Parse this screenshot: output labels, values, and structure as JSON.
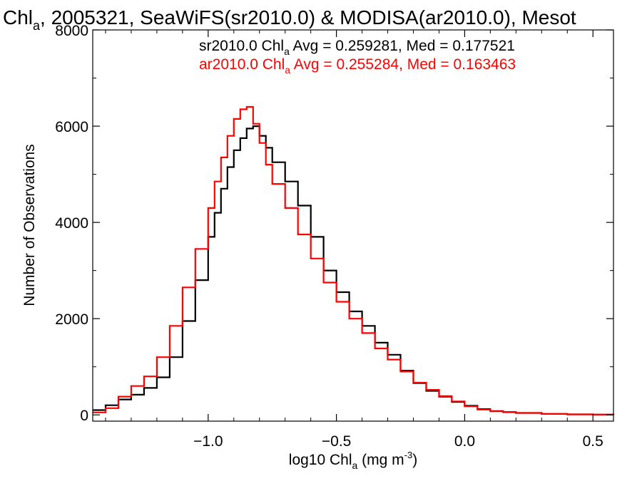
{
  "chart_data": {
    "type": "line",
    "title": {
      "main": "Chl",
      "sub": "a",
      "rest": ", 2005321, SeaWiFS(sr2010.0) & MODISA(ar2010.0), Mesot"
    },
    "xlabel": {
      "main": "log10 Chl",
      "sub": "a",
      "rest": " (mg m",
      "sup": "-3",
      "close": ")"
    },
    "ylabel": "Number of Observations",
    "xlim": [
      -1.45,
      0.58
    ],
    "ylim": [
      -130,
      8000
    ],
    "xticks": [
      -1.0,
      -0.5,
      0.0,
      0.5
    ],
    "xtick_labels": [
      "−1.0",
      "−0.5",
      "0.0",
      "0.5"
    ],
    "yticks": [
      0,
      2000,
      4000,
      6000,
      8000
    ],
    "ytick_labels": [
      "0",
      "2000",
      "4000",
      "6000",
      "8000"
    ],
    "grid": false,
    "legend_placement": "top-right",
    "series": [
      {
        "name": "sr2010.0",
        "color": "#000000",
        "legend": {
          "pre": "sr2010.0 Chl",
          "sub": "a",
          "post": " Avg = 0.259281, Med = 0.177521"
        },
        "x": [
          -1.45,
          -1.4,
          -1.35,
          -1.3,
          -1.25,
          -1.2,
          -1.15,
          -1.1,
          -1.05,
          -1.0,
          -0.975,
          -0.95,
          -0.925,
          -0.9,
          -0.875,
          -0.85,
          -0.825,
          -0.8,
          -0.775,
          -0.75,
          -0.7,
          -0.65,
          -0.6,
          -0.55,
          -0.5,
          -0.45,
          -0.4,
          -0.35,
          -0.3,
          -0.25,
          -0.2,
          -0.15,
          -0.1,
          -0.05,
          0.0,
          0.05,
          0.1,
          0.15,
          0.2,
          0.3,
          0.4,
          0.5,
          0.58
        ],
        "y": [
          100,
          200,
          320,
          420,
          560,
          780,
          1200,
          1950,
          2800,
          3700,
          4200,
          4700,
          5150,
          5500,
          5750,
          5950,
          6000,
          5800,
          5550,
          5250,
          4850,
          4350,
          3700,
          3000,
          2550,
          2150,
          1850,
          1500,
          1250,
          920,
          660,
          500,
          380,
          270,
          190,
          120,
          80,
          60,
          40,
          20,
          10,
          5,
          0
        ]
      },
      {
        "name": "ar2010.0",
        "color": "#ff0000",
        "legend": {
          "pre": "ar2010.0 Chl",
          "sub": "a",
          "post": " Avg = 0.255284, Med = 0.163463"
        },
        "x": [
          -1.45,
          -1.4,
          -1.35,
          -1.3,
          -1.25,
          -1.2,
          -1.15,
          -1.1,
          -1.05,
          -1.0,
          -0.975,
          -0.95,
          -0.925,
          -0.9,
          -0.875,
          -0.85,
          -0.825,
          -0.8,
          -0.775,
          -0.75,
          -0.7,
          -0.65,
          -0.6,
          -0.55,
          -0.5,
          -0.45,
          -0.4,
          -0.35,
          -0.3,
          -0.25,
          -0.2,
          -0.15,
          -0.1,
          -0.05,
          0.0,
          0.05,
          0.1,
          0.15,
          0.2,
          0.3,
          0.4,
          0.5,
          0.58
        ],
        "y": [
          50,
          140,
          380,
          600,
          800,
          1200,
          1850,
          2650,
          3450,
          4300,
          4850,
          5350,
          5800,
          6150,
          6350,
          6400,
          6050,
          5650,
          5200,
          4800,
          4300,
          3750,
          3250,
          2750,
          2350,
          2000,
          1700,
          1380,
          1150,
          900,
          670,
          520,
          390,
          280,
          180,
          110,
          75,
          55,
          40,
          20,
          10,
          5,
          0
        ]
      }
    ]
  }
}
